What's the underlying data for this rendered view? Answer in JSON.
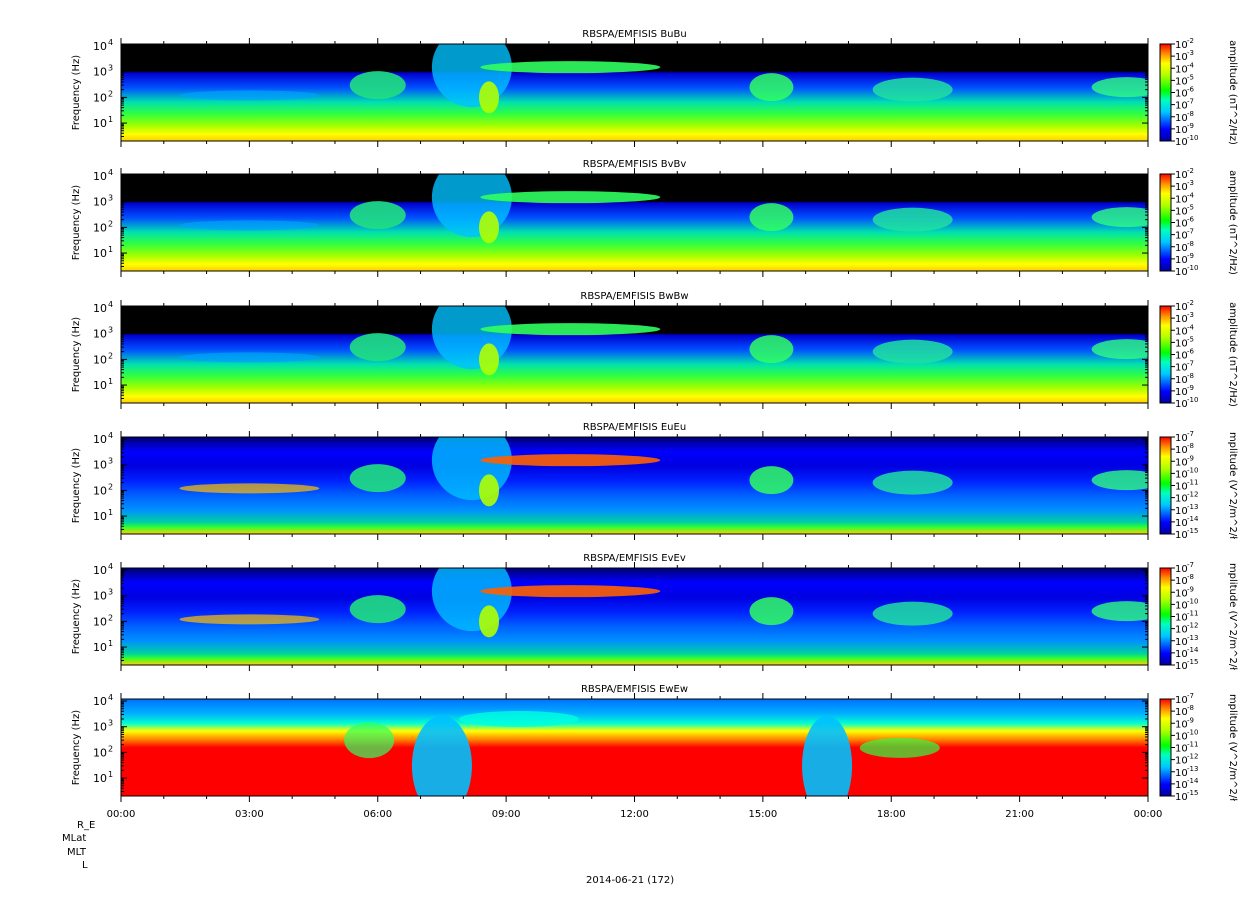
{
  "footer": {
    "orbit_labels": [
      "R_E",
      "MLat",
      "MLT",
      "L"
    ],
    "date_label": "2014-06-21 (172)"
  },
  "chart_data": [
    {
      "type": "heatmap",
      "title": "RBSPA/EMFISIS  BuBu",
      "ylabel": "Frequency (Hz)",
      "yscale": "log",
      "ylim": [
        2,
        12000
      ],
      "yticks": [
        {
          "value": 10,
          "exp": "1"
        },
        {
          "value": 100,
          "exp": "2"
        },
        {
          "value": 1000,
          "exp": "3"
        },
        {
          "value": 10000,
          "exp": "4"
        }
      ],
      "zlabel": "amplitude (nT^2/Hz)",
      "zscale": "log",
      "zrange_exp": [
        -10,
        -2
      ],
      "zticks": [
        "-2",
        "-3",
        "-4",
        "-5",
        "-6",
        "-7",
        "-8",
        "-9",
        "-10"
      ],
      "xlim": [
        "00:00",
        "00:00"
      ]
    },
    {
      "type": "heatmap",
      "title": "RBSPA/EMFISIS  BvBv",
      "ylabel": "Frequency (Hz)",
      "yscale": "log",
      "ylim": [
        2,
        12000
      ],
      "yticks": [
        {
          "value": 10,
          "exp": "1"
        },
        {
          "value": 100,
          "exp": "2"
        },
        {
          "value": 1000,
          "exp": "3"
        },
        {
          "value": 10000,
          "exp": "4"
        }
      ],
      "zlabel": "amplitude (nT^2/Hz)",
      "zscale": "log",
      "zrange_exp": [
        -10,
        -2
      ],
      "zticks": [
        "-2",
        "-3",
        "-4",
        "-5",
        "-6",
        "-7",
        "-8",
        "-9",
        "-10"
      ],
      "xlim": [
        "00:00",
        "00:00"
      ]
    },
    {
      "type": "heatmap",
      "title": "RBSPA/EMFISIS  BwBw",
      "ylabel": "Frequency (Hz)",
      "yscale": "log",
      "ylim": [
        2,
        12000
      ],
      "yticks": [
        {
          "value": 10,
          "exp": "1"
        },
        {
          "value": 100,
          "exp": "2"
        },
        {
          "value": 1000,
          "exp": "3"
        },
        {
          "value": 10000,
          "exp": "4"
        }
      ],
      "zlabel": "amplitude (nT^2/Hz)",
      "zscale": "log",
      "zrange_exp": [
        -10,
        -2
      ],
      "zticks": [
        "-2",
        "-3",
        "-4",
        "-5",
        "-6",
        "-7",
        "-8",
        "-9",
        "-10"
      ],
      "xlim": [
        "00:00",
        "00:00"
      ]
    },
    {
      "type": "heatmap",
      "title": "RBSPA/EMFISIS  EuEu",
      "ylabel": "Frequency (Hz)",
      "yscale": "log",
      "ylim": [
        2,
        12000
      ],
      "yticks": [
        {
          "value": 10,
          "exp": "1"
        },
        {
          "value": 100,
          "exp": "2"
        },
        {
          "value": 1000,
          "exp": "3"
        },
        {
          "value": 10000,
          "exp": "4"
        }
      ],
      "zlabel": "mplitude (V^2/m^2/ł",
      "zscale": "log",
      "zrange_exp": [
        -15,
        -7
      ],
      "zticks": [
        "-7",
        "-8",
        "-9",
        "-10",
        "-11",
        "-12",
        "-13",
        "-14",
        "-15"
      ],
      "xlim": [
        "00:00",
        "00:00"
      ]
    },
    {
      "type": "heatmap",
      "title": "RBSPA/EMFISIS  EvEv",
      "ylabel": "Frequency (Hz)",
      "yscale": "log",
      "ylim": [
        2,
        12000
      ],
      "yticks": [
        {
          "value": 10,
          "exp": "1"
        },
        {
          "value": 100,
          "exp": "2"
        },
        {
          "value": 1000,
          "exp": "3"
        },
        {
          "value": 10000,
          "exp": "4"
        }
      ],
      "zlabel": "mplitude (V^2/m^2/ł",
      "zscale": "log",
      "zrange_exp": [
        -15,
        -7
      ],
      "zticks": [
        "-7",
        "-8",
        "-9",
        "-10",
        "-11",
        "-12",
        "-13",
        "-14",
        "-15"
      ],
      "xlim": [
        "00:00",
        "00:00"
      ]
    },
    {
      "type": "heatmap",
      "title": "RBSPA/EMFISIS  EwEw",
      "ylabel": "Frequency (Hz)",
      "yscale": "log",
      "ylim": [
        2,
        12000
      ],
      "yticks": [
        {
          "value": 10,
          "exp": "1"
        },
        {
          "value": 100,
          "exp": "2"
        },
        {
          "value": 1000,
          "exp": "3"
        },
        {
          "value": 10000,
          "exp": "4"
        }
      ],
      "zlabel": "mplitude (V^2/m^2/ł",
      "zscale": "log",
      "zrange_exp": [
        -15,
        -7
      ],
      "zticks": [
        "-7",
        "-8",
        "-9",
        "-10",
        "-11",
        "-12",
        "-13",
        "-14",
        "-15"
      ],
      "xlim": [
        "00:00",
        "00:00"
      ],
      "xticks": [
        {
          "hour": 0,
          "label": "00:00"
        },
        {
          "hour": 3,
          "label": "03:00"
        },
        {
          "hour": 6,
          "label": "06:00"
        },
        {
          "hour": 9,
          "label": "09:00"
        },
        {
          "hour": 12,
          "label": "12:00"
        },
        {
          "hour": 15,
          "label": "15:00"
        },
        {
          "hour": 18,
          "label": "18:00"
        },
        {
          "hour": 21,
          "label": "21:00"
        },
        {
          "hour": 24,
          "label": "00:00"
        }
      ]
    }
  ]
}
